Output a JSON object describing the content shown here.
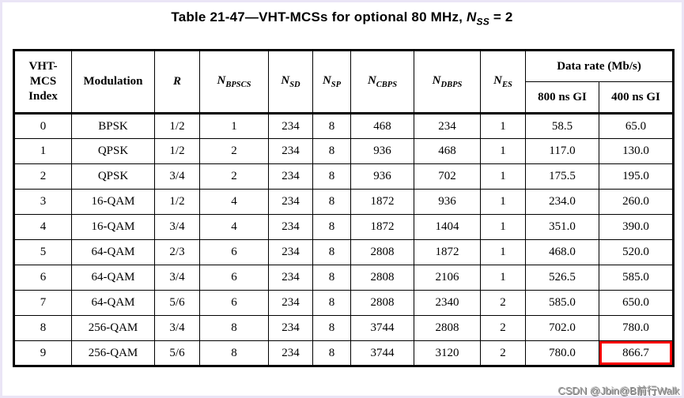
{
  "page": {
    "title": {
      "prefix": "Table 21-47—VHT-MCSs for optional 80 MHz, ",
      "var_main": "N",
      "var_sub": "SS",
      "suffix": " = 2"
    },
    "watermark": "CSDN @Jbin@B前行Walk",
    "colors": {
      "text": "#000000",
      "table_border": "#000000",
      "highlight_box": "#fe0000",
      "watermark": "#a6a6a6",
      "page_edge": "#eae5f6"
    }
  },
  "table": {
    "headers": [
      {
        "text": "VHT-\nMCS\nIndex"
      },
      {
        "text": "Modulation"
      },
      {
        "text": "R",
        "italic": true
      },
      {
        "main": "N",
        "sub": "BPSCS"
      },
      {
        "main": "N",
        "sub": "SD"
      },
      {
        "main": "N",
        "sub": "SP"
      },
      {
        "main": "N",
        "sub": "CBPS"
      },
      {
        "main": "N",
        "sub": "DBPS"
      },
      {
        "main": "N",
        "sub": "ES"
      }
    ],
    "data_rate": {
      "label": "Data rate (Mb/s)",
      "sub": [
        "800 ns GI",
        "400 ns GI"
      ]
    },
    "rows": [
      [
        "0",
        "BPSK",
        "1/2",
        "1",
        "234",
        "8",
        "468",
        "234",
        "1",
        "58.5",
        "65.0"
      ],
      [
        "1",
        "QPSK",
        "1/2",
        "2",
        "234",
        "8",
        "936",
        "468",
        "1",
        "117.0",
        "130.0"
      ],
      [
        "2",
        "QPSK",
        "3/4",
        "2",
        "234",
        "8",
        "936",
        "702",
        "1",
        "175.5",
        "195.0"
      ],
      [
        "3",
        "16-QAM",
        "1/2",
        "4",
        "234",
        "8",
        "1872",
        "936",
        "1",
        "234.0",
        "260.0"
      ],
      [
        "4",
        "16-QAM",
        "3/4",
        "4",
        "234",
        "8",
        "1872",
        "1404",
        "1",
        "351.0",
        "390.0"
      ],
      [
        "5",
        "64-QAM",
        "2/3",
        "6",
        "234",
        "8",
        "2808",
        "1872",
        "1",
        "468.0",
        "520.0"
      ],
      [
        "6",
        "64-QAM",
        "3/4",
        "6",
        "234",
        "8",
        "2808",
        "2106",
        "1",
        "526.5",
        "585.0"
      ],
      [
        "7",
        "64-QAM",
        "5/6",
        "6",
        "234",
        "8",
        "2808",
        "2340",
        "2",
        "585.0",
        "650.0"
      ],
      [
        "8",
        "256-QAM",
        "3/4",
        "8",
        "234",
        "8",
        "3744",
        "2808",
        "2",
        "702.0",
        "780.0"
      ],
      [
        "9",
        "256-QAM",
        "5/6",
        "8",
        "234",
        "8",
        "3744",
        "3120",
        "2",
        "780.0",
        "866.7"
      ]
    ],
    "highlight": {
      "row_index": 9,
      "col_index": 10
    }
  }
}
